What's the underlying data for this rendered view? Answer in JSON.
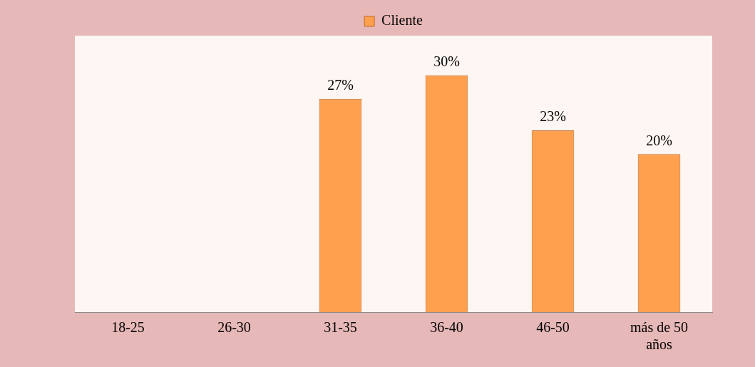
{
  "chart_data": {
    "type": "bar",
    "categories": [
      "18-25",
      "26-30",
      "31-35",
      "36-40",
      "46-50",
      "más de 50 años"
    ],
    "series": [
      {
        "name": "Cliente",
        "color": "#ffa04f",
        "values": [
          0,
          0,
          27,
          30,
          23,
          20
        ],
        "value_labels": [
          null,
          null,
          "27%",
          "30%",
          "23%",
          "20%"
        ]
      }
    ],
    "legend": "top",
    "grid": false
  }
}
